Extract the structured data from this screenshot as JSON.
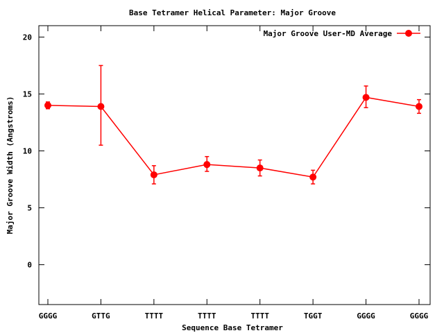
{
  "chart_data": {
    "type": "line",
    "title": "Base Tetramer Helical Parameter: Major Groove",
    "xlabel": "Sequence Base Tetramer",
    "ylabel": "Major Groove Width (Angstroms)",
    "categories": [
      "GGGG",
      "GTTG",
      "TTTT",
      "TTTT",
      "TTTT",
      "TGGT",
      "GGGG",
      "GGGG"
    ],
    "ylim": [
      -3.5,
      21
    ],
    "yticks": [
      "0",
      "5",
      "10",
      "15",
      "20"
    ],
    "ytick_values": [
      0,
      5,
      10,
      15,
      20
    ],
    "grid": false,
    "legend_position": "top-right",
    "series": [
      {
        "name": "Major Groove User-MD Average",
        "values": [
          14.0,
          13.9,
          7.9,
          8.8,
          8.5,
          7.7,
          14.7,
          13.9
        ],
        "error_low": [
          13.7,
          10.5,
          7.1,
          8.2,
          7.8,
          7.1,
          13.8,
          13.3
        ],
        "error_high": [
          14.3,
          17.5,
          8.7,
          9.5,
          9.2,
          8.3,
          15.7,
          14.5
        ],
        "color": "#ff0000"
      }
    ]
  }
}
